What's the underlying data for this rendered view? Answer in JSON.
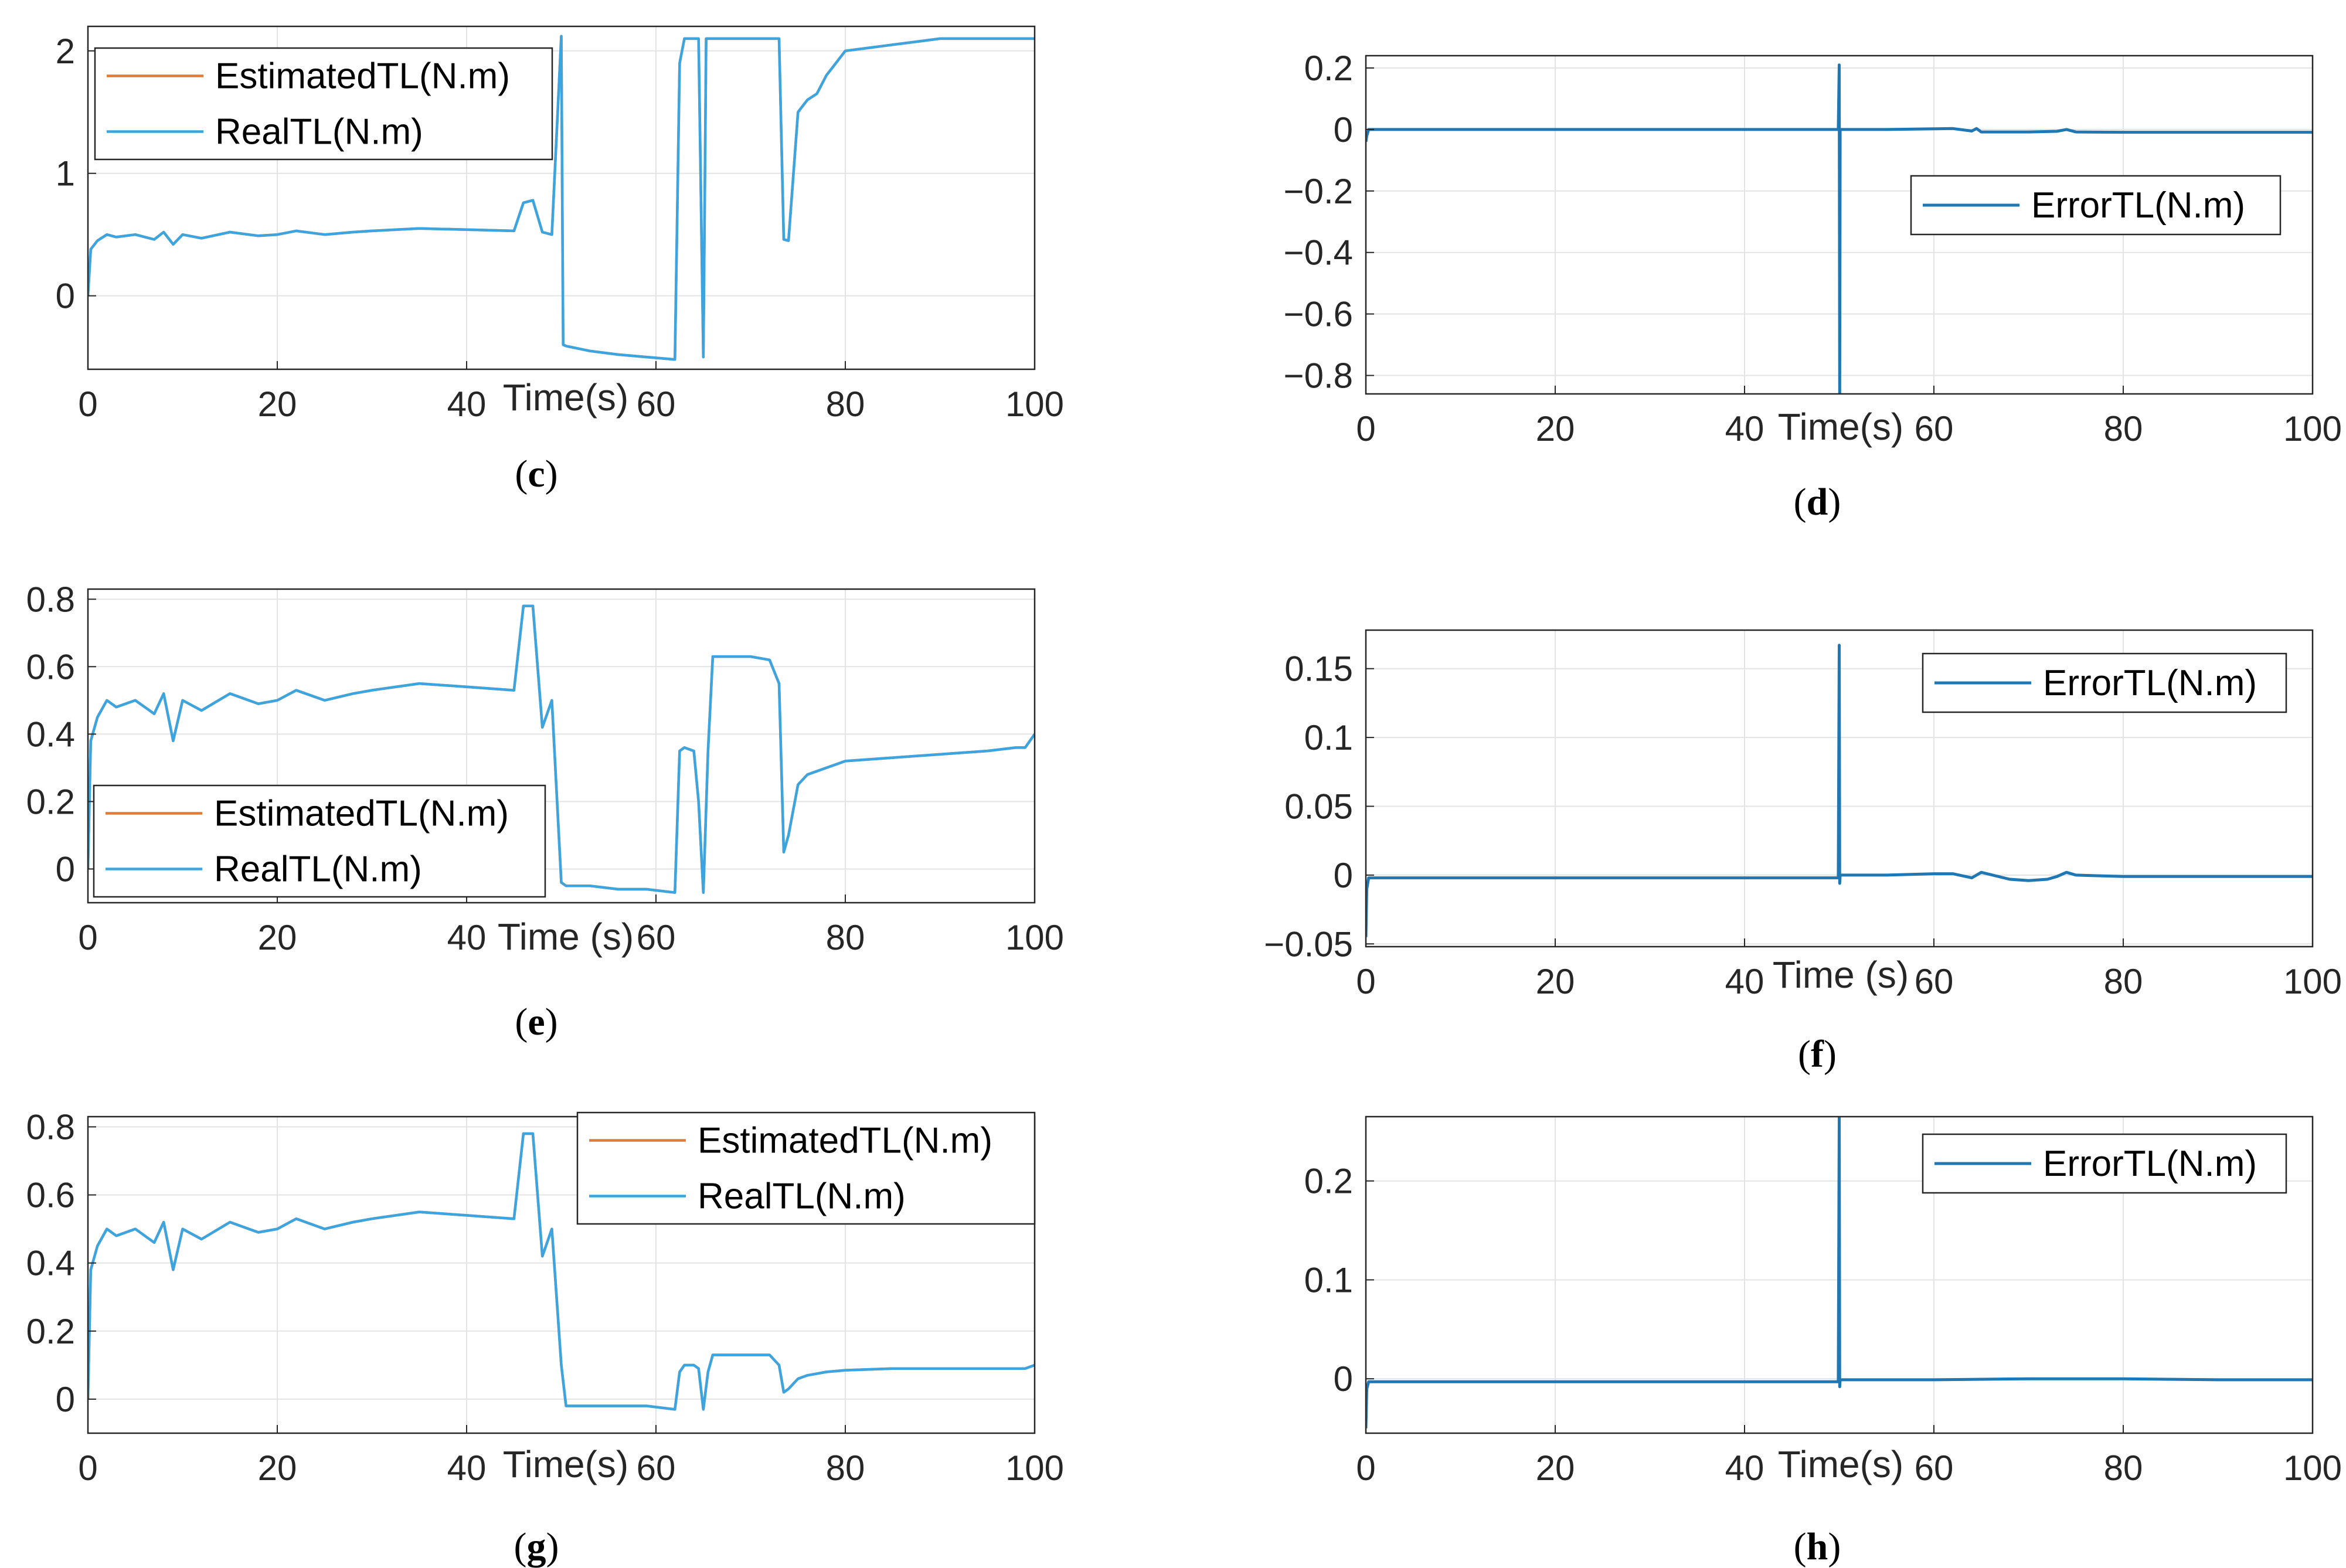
{
  "colors": {
    "estimated": "#E07B39",
    "real": "#3CA5E0",
    "error": "#1F77B4",
    "grid": "#E3E3E3",
    "axis": "#262626"
  },
  "chart_data": [
    {
      "id": "c",
      "type": "line",
      "panel_label": "c",
      "xlabel": "Time(s)",
      "ylabel": "",
      "xlim": [
        0,
        100
      ],
      "ylim": [
        -0.6,
        2.2
      ],
      "xticks": [
        0,
        20,
        40,
        60,
        80,
        100
      ],
      "yticks": [
        0,
        1,
        2
      ],
      "ytick_labels": [
        "0",
        "1",
        "2"
      ],
      "legend": {
        "position": "top-left"
      },
      "series": [
        {
          "name": "EstimatedTL(N.m)",
          "color_key": "estimated",
          "x": [
            0,
            0.3,
            1,
            2,
            3,
            5,
            7,
            8,
            9,
            10,
            12,
            15,
            18,
            20,
            22,
            25,
            28,
            30,
            35,
            40,
            45,
            46,
            47,
            48,
            49,
            50,
            50.2,
            50.5,
            53,
            56,
            59,
            62,
            62.5,
            63,
            64,
            64.5,
            65,
            65.3,
            66,
            70,
            73,
            73.5,
            74,
            75,
            75.5,
            76,
            77,
            78,
            79,
            80,
            82,
            85,
            88,
            90,
            95,
            100
          ],
          "y": [
            0,
            0.38,
            0.45,
            0.5,
            0.48,
            0.5,
            0.46,
            0.52,
            0.42,
            0.5,
            0.47,
            0.52,
            0.49,
            0.5,
            0.53,
            0.5,
            0.52,
            0.53,
            0.55,
            0.54,
            0.53,
            0.76,
            0.78,
            0.52,
            0.5,
            2.12,
            -0.4,
            -0.41,
            -0.45,
            -0.48,
            -0.5,
            -0.52,
            1.9,
            2.1,
            2.1,
            2.1,
            -0.5,
            2.1,
            2.1,
            2.1,
            2.1,
            0.46,
            0.45,
            1.5,
            1.55,
            1.6,
            1.65,
            1.8,
            1.9,
            2.0,
            2.02,
            2.05,
            2.08,
            2.1,
            2.1,
            2.1
          ]
        },
        {
          "name": "RealTL(N.m)",
          "color_key": "real",
          "x": [
            0,
            0.3,
            1,
            2,
            3,
            5,
            7,
            8,
            9,
            10,
            12,
            15,
            18,
            20,
            22,
            25,
            28,
            30,
            35,
            40,
            45,
            46,
            47,
            48,
            49,
            50,
            50.2,
            50.5,
            53,
            56,
            59,
            62,
            62.5,
            63,
            64,
            64.5,
            65,
            65.3,
            66,
            70,
            73,
            73.5,
            74,
            75,
            75.5,
            76,
            77,
            78,
            79,
            80,
            82,
            85,
            88,
            90,
            95,
            100
          ],
          "y": [
            0,
            0.38,
            0.45,
            0.5,
            0.48,
            0.5,
            0.46,
            0.52,
            0.42,
            0.5,
            0.47,
            0.52,
            0.49,
            0.5,
            0.53,
            0.5,
            0.52,
            0.53,
            0.55,
            0.54,
            0.53,
            0.76,
            0.78,
            0.52,
            0.5,
            2.12,
            -0.4,
            -0.41,
            -0.45,
            -0.48,
            -0.5,
            -0.52,
            1.9,
            2.1,
            2.1,
            2.1,
            -0.5,
            2.1,
            2.1,
            2.1,
            2.1,
            0.46,
            0.45,
            1.5,
            1.55,
            1.6,
            1.65,
            1.8,
            1.9,
            2.0,
            2.02,
            2.05,
            2.08,
            2.1,
            2.1,
            2.1
          ]
        }
      ]
    },
    {
      "id": "d",
      "type": "line",
      "panel_label": "d",
      "xlabel": "Time(s)",
      "ylabel": "",
      "xlim": [
        0,
        100
      ],
      "ylim": [
        -0.86,
        0.24
      ],
      "xticks": [
        0,
        20,
        40,
        60,
        80,
        100
      ],
      "yticks": [
        0.2,
        0,
        -0.2,
        -0.4,
        -0.6,
        -0.8
      ],
      "ytick_labels": [
        "0.2",
        "0",
        "−0.2",
        "−0.4",
        "−0.6",
        "−0.8"
      ],
      "legend": {
        "position": "center-right"
      },
      "series": [
        {
          "name": "ErrorTL(N.m)",
          "color_key": "error",
          "x": [
            0,
            0.1,
            0.3,
            10,
            20,
            30,
            40,
            49.9,
            50,
            50.05,
            50.1,
            55,
            60,
            62,
            64,
            64.5,
            65,
            70,
            73,
            74,
            75,
            80,
            90,
            100
          ],
          "y": [
            -0.04,
            -0.02,
            0,
            0,
            0,
            0,
            0,
            0,
            0.21,
            -0.86,
            0,
            0,
            0.002,
            0.003,
            -0.005,
            0.003,
            -0.008,
            -0.008,
            -0.006,
            0,
            -0.008,
            -0.009,
            -0.009,
            -0.009
          ]
        }
      ]
    },
    {
      "id": "e",
      "type": "line",
      "panel_label": "e",
      "xlabel": "Time (s)",
      "ylabel": "",
      "xlim": [
        0,
        100
      ],
      "ylim": [
        -0.1,
        0.83
      ],
      "xticks": [
        0,
        20,
        40,
        60,
        80,
        100
      ],
      "yticks": [
        0,
        0.2,
        0.4,
        0.6,
        0.8
      ],
      "ytick_labels": [
        "0",
        "0.2",
        "0.4",
        "0.6",
        "0.8"
      ],
      "legend": {
        "position": "bottom-left"
      },
      "series": [
        {
          "name": "EstimatedTL(N.m)",
          "color_key": "estimated",
          "x": [
            0,
            0.3,
            1,
            2,
            3,
            5,
            7,
            8,
            9,
            10,
            12,
            15,
            18,
            20,
            22,
            25,
            28,
            30,
            35,
            40,
            45,
            46,
            47,
            48,
            49,
            50,
            50.5,
            53,
            56,
            59,
            62,
            62.5,
            63,
            64,
            64.5,
            65,
            65.5,
            66,
            70,
            72,
            73,
            73.5,
            74,
            75,
            76,
            78,
            79,
            80,
            85,
            90,
            95,
            98,
            99,
            100
          ],
          "y": [
            0,
            0.38,
            0.45,
            0.5,
            0.48,
            0.5,
            0.46,
            0.52,
            0.38,
            0.5,
            0.47,
            0.52,
            0.49,
            0.5,
            0.53,
            0.5,
            0.52,
            0.53,
            0.55,
            0.54,
            0.53,
            0.78,
            0.78,
            0.42,
            0.5,
            -0.04,
            -0.05,
            -0.05,
            -0.06,
            -0.06,
            -0.07,
            0.35,
            0.36,
            0.35,
            0.2,
            -0.07,
            0.35,
            0.63,
            0.63,
            0.62,
            0.55,
            0.05,
            0.1,
            0.25,
            0.28,
            0.3,
            0.31,
            0.32,
            0.33,
            0.34,
            0.35,
            0.36,
            0.36,
            0.4
          ]
        },
        {
          "name": "RealTL(N.m)",
          "color_key": "real",
          "x": [
            0,
            0.3,
            1,
            2,
            3,
            5,
            7,
            8,
            9,
            10,
            12,
            15,
            18,
            20,
            22,
            25,
            28,
            30,
            35,
            40,
            45,
            46,
            47,
            48,
            49,
            50,
            50.5,
            53,
            56,
            59,
            62,
            62.5,
            63,
            64,
            64.5,
            65,
            65.5,
            66,
            70,
            72,
            73,
            73.5,
            74,
            75,
            76,
            78,
            79,
            80,
            85,
            90,
            95,
            98,
            99,
            100
          ],
          "y": [
            0,
            0.38,
            0.45,
            0.5,
            0.48,
            0.5,
            0.46,
            0.52,
            0.38,
            0.5,
            0.47,
            0.52,
            0.49,
            0.5,
            0.53,
            0.5,
            0.52,
            0.53,
            0.55,
            0.54,
            0.53,
            0.78,
            0.78,
            0.42,
            0.5,
            -0.04,
            -0.05,
            -0.05,
            -0.06,
            -0.06,
            -0.07,
            0.35,
            0.36,
            0.35,
            0.2,
            -0.07,
            0.35,
            0.63,
            0.63,
            0.62,
            0.55,
            0.05,
            0.1,
            0.25,
            0.28,
            0.3,
            0.31,
            0.32,
            0.33,
            0.34,
            0.35,
            0.36,
            0.36,
            0.4
          ]
        }
      ]
    },
    {
      "id": "f",
      "type": "line",
      "panel_label": "f",
      "xlabel": "Time (s)",
      "ylabel": "",
      "xlim": [
        0,
        100
      ],
      "ylim": [
        -0.052,
        0.178
      ],
      "xticks": [
        0,
        20,
        40,
        60,
        80,
        100
      ],
      "yticks": [
        0.15,
        0.1,
        0.05,
        0,
        -0.05
      ],
      "ytick_labels": [
        "0.15",
        "0.1",
        "0.05",
        "0",
        "−0.05"
      ],
      "legend": {
        "position": "top-right"
      },
      "series": [
        {
          "name": "ErrorTL(N.m)",
          "color_key": "error",
          "x": [
            0,
            0.1,
            0.3,
            10,
            20,
            30,
            40,
            49.9,
            50,
            50.05,
            50.1,
            55,
            60,
            62,
            64,
            65,
            68,
            70,
            72,
            73,
            74,
            75,
            80,
            90,
            100
          ],
          "y": [
            -0.045,
            -0.01,
            -0.002,
            -0.002,
            -0.002,
            -0.002,
            -0.002,
            -0.002,
            0.167,
            -0.006,
            0,
            0,
            0.001,
            0.001,
            -0.002,
            0.002,
            -0.003,
            -0.004,
            -0.003,
            -0.001,
            0.002,
            0,
            -0.001,
            -0.001,
            -0.001
          ]
        }
      ]
    },
    {
      "id": "g",
      "type": "line",
      "panel_label": "g",
      "xlabel": "Time(s)",
      "ylabel": "",
      "xlim": [
        0,
        100
      ],
      "ylim": [
        -0.1,
        0.83
      ],
      "xticks": [
        0,
        20,
        40,
        60,
        80,
        100
      ],
      "yticks": [
        0,
        0.2,
        0.4,
        0.6,
        0.8
      ],
      "ytick_labels": [
        "0",
        "0.2",
        "0.4",
        "0.6",
        "0.8"
      ],
      "legend": {
        "position": "top-right"
      },
      "series": [
        {
          "name": "EstimatedTL(N.m)",
          "color_key": "estimated",
          "x": [
            0,
            0.3,
            1,
            2,
            3,
            5,
            7,
            8,
            9,
            10,
            12,
            15,
            18,
            20,
            22,
            25,
            28,
            30,
            35,
            40,
            45,
            46,
            47,
            48,
            49,
            50,
            50.5,
            53,
            56,
            59,
            62,
            62.5,
            63,
            64,
            64.5,
            65,
            65.5,
            66,
            70,
            72,
            73,
            73.5,
            74,
            75,
            76,
            78,
            80,
            85,
            90,
            95,
            99,
            100
          ],
          "y": [
            0,
            0.38,
            0.45,
            0.5,
            0.48,
            0.5,
            0.46,
            0.52,
            0.38,
            0.5,
            0.47,
            0.52,
            0.49,
            0.5,
            0.53,
            0.5,
            0.52,
            0.53,
            0.55,
            0.54,
            0.53,
            0.78,
            0.78,
            0.42,
            0.5,
            0.1,
            -0.02,
            -0.02,
            -0.02,
            -0.02,
            -0.03,
            0.08,
            0.1,
            0.1,
            0.09,
            -0.03,
            0.08,
            0.13,
            0.13,
            0.13,
            0.1,
            0.02,
            0.03,
            0.06,
            0.07,
            0.08,
            0.085,
            0.09,
            0.09,
            0.09,
            0.09,
            0.1
          ]
        },
        {
          "name": "RealTL(N.m)",
          "color_key": "real",
          "x": [
            0,
            0.3,
            1,
            2,
            3,
            5,
            7,
            8,
            9,
            10,
            12,
            15,
            18,
            20,
            22,
            25,
            28,
            30,
            35,
            40,
            45,
            46,
            47,
            48,
            49,
            50,
            50.5,
            53,
            56,
            59,
            62,
            62.5,
            63,
            64,
            64.5,
            65,
            65.5,
            66,
            70,
            72,
            73,
            73.5,
            74,
            75,
            76,
            78,
            80,
            85,
            90,
            95,
            99,
            100
          ],
          "y": [
            0,
            0.38,
            0.45,
            0.5,
            0.48,
            0.5,
            0.46,
            0.52,
            0.38,
            0.5,
            0.47,
            0.52,
            0.49,
            0.5,
            0.53,
            0.5,
            0.52,
            0.53,
            0.55,
            0.54,
            0.53,
            0.78,
            0.78,
            0.42,
            0.5,
            0.1,
            -0.02,
            -0.02,
            -0.02,
            -0.02,
            -0.03,
            0.08,
            0.1,
            0.1,
            0.09,
            -0.03,
            0.08,
            0.13,
            0.13,
            0.13,
            0.1,
            0.02,
            0.03,
            0.06,
            0.07,
            0.08,
            0.085,
            0.09,
            0.09,
            0.09,
            0.09,
            0.1
          ]
        }
      ]
    },
    {
      "id": "h",
      "type": "line",
      "panel_label": "h",
      "xlabel": "Time(s)",
      "ylabel": "",
      "xlim": [
        0,
        100
      ],
      "ylim": [
        -0.055,
        0.265
      ],
      "xticks": [
        0,
        20,
        40,
        60,
        80,
        100
      ],
      "yticks": [
        0.2,
        0.1,
        0
      ],
      "ytick_labels": [
        "0.2",
        "0.1",
        "0"
      ],
      "legend": {
        "position": "top-right"
      },
      "series": [
        {
          "name": "ErrorTL(N.m)",
          "color_key": "error",
          "x": [
            0,
            0.1,
            0.3,
            10,
            20,
            30,
            40,
            49.9,
            50,
            50.05,
            50.1,
            60,
            70,
            80,
            90,
            100
          ],
          "y": [
            -0.05,
            -0.01,
            -0.003,
            -0.003,
            -0.003,
            -0.003,
            -0.003,
            -0.003,
            0.265,
            -0.008,
            -0.001,
            -0.001,
            0,
            0,
            -0.001,
            -0.001
          ]
        }
      ]
    }
  ]
}
